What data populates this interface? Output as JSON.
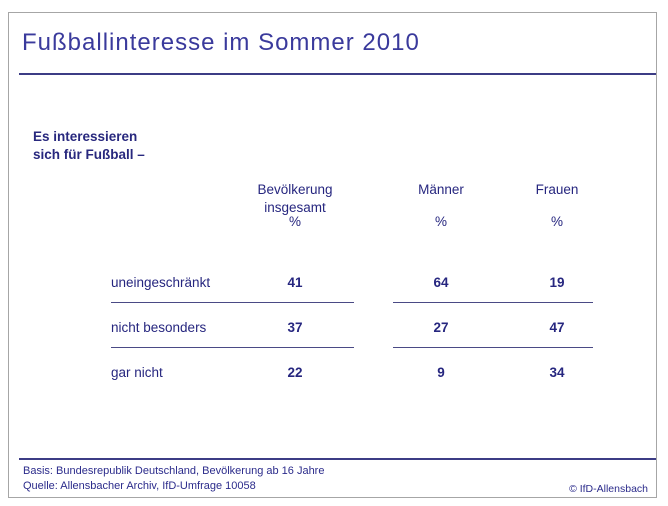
{
  "title": "Fußballinteresse im Sommer 2010",
  "question": {
    "line1": "Es interessieren",
    "line2": "sich für Fußball –"
  },
  "table": {
    "unit": "%",
    "col1_line1": "Bevölkerung",
    "col1_line2": "insgesamt",
    "col2": "Männer",
    "col3": "Frauen"
  },
  "chart_data": {
    "type": "table",
    "title": "Fußballinteresse im Sommer 2010",
    "question": "Es interessieren sich für Fußball –",
    "unit": "%",
    "columns": [
      "Bevölkerung insgesamt",
      "Männer",
      "Frauen"
    ],
    "rows": [
      {
        "label": "uneingeschränkt",
        "values": [
          41,
          64,
          19
        ]
      },
      {
        "label": "nicht besonders",
        "values": [
          37,
          27,
          47
        ]
      },
      {
        "label": "gar nicht",
        "values": [
          22,
          9,
          34
        ]
      }
    ]
  },
  "footer": {
    "basis": "Basis: Bundesrepublik Deutschland, Bevölkerung ab 16 Jahre",
    "source": "Quelle: Allensbacher Archiv, IfD-Umfrage 10058",
    "copyright": "© IfD-Allensbach"
  },
  "colors": {
    "title_text": "#3a3a9c",
    "body_text": "#26267f",
    "line": "#3c3c85",
    "outer_border": "#a6a6a6"
  }
}
